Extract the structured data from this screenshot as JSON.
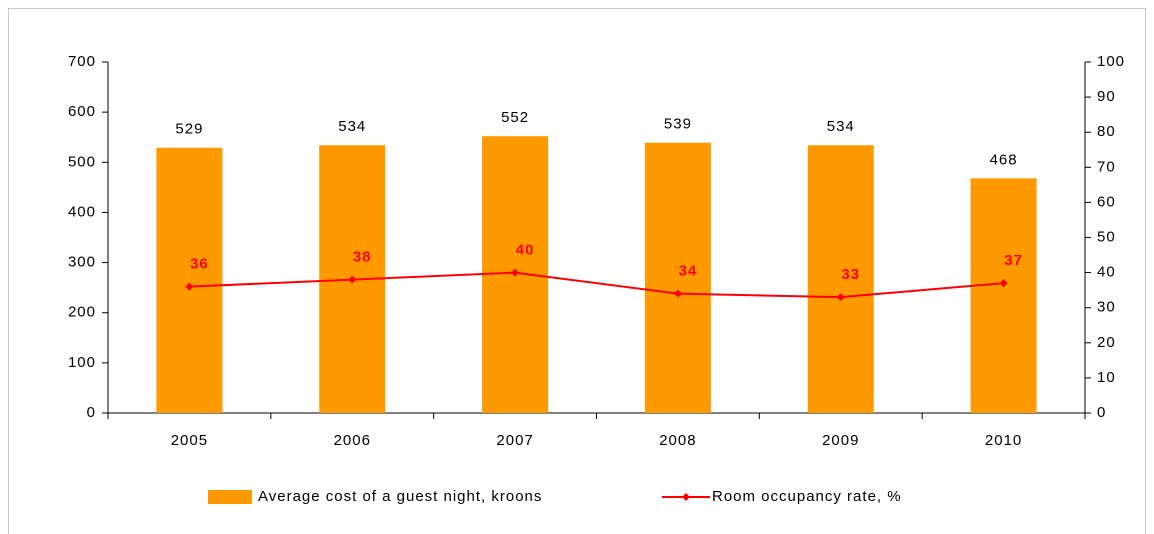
{
  "chart_data": {
    "type": "bar",
    "categories": [
      "2005",
      "2006",
      "2007",
      "2008",
      "2009",
      "2010"
    ],
    "series": [
      {
        "name": "Average cost of a guest night, kroons",
        "type": "bar",
        "color": "#ff9900",
        "values": [
          529,
          534,
          552,
          539,
          534,
          468
        ]
      },
      {
        "name": "Room occupancy rate, %",
        "type": "line",
        "axis": "y2",
        "color": "#ff0000",
        "values": [
          36,
          38,
          40,
          34,
          33,
          37
        ]
      }
    ],
    "ylim": [
      0,
      700
    ],
    "yticks": [
      0,
      100,
      200,
      300,
      400,
      500,
      600,
      700
    ],
    "y2lim": [
      0,
      100
    ],
    "y2ticks": [
      0,
      10,
      20,
      30,
      40,
      50,
      60,
      70,
      80,
      90,
      100
    ],
    "legend": "bottom"
  }
}
